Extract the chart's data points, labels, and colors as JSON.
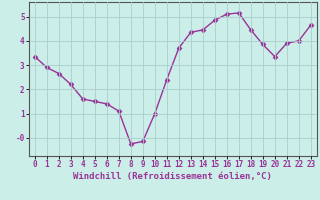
{
  "x": [
    0,
    1,
    2,
    3,
    4,
    5,
    6,
    7,
    8,
    9,
    10,
    11,
    12,
    13,
    14,
    15,
    16,
    17,
    18,
    19,
    20,
    21,
    22,
    23
  ],
  "y": [
    3.35,
    2.9,
    2.65,
    2.2,
    1.6,
    1.5,
    1.4,
    1.1,
    -0.25,
    -0.15,
    1.0,
    2.4,
    3.7,
    4.35,
    4.45,
    4.85,
    5.1,
    5.15,
    4.45,
    3.85,
    3.35,
    3.9,
    4.0,
    4.65
  ],
  "line_color": "#993399",
  "marker": "D",
  "marker_size": 2.5,
  "linewidth": 1.0,
  "xlabel": "Windchill (Refroidissement éolien,°C)",
  "xlabel_fontsize": 6.5,
  "xlim": [
    -0.5,
    23.5
  ],
  "ylim": [
    -0.75,
    5.6
  ],
  "yticks": [
    0,
    1,
    2,
    3,
    4,
    5
  ],
  "ytick_labels": [
    "-0",
    "1",
    "2",
    "3",
    "4",
    "5"
  ],
  "xticks": [
    0,
    1,
    2,
    3,
    4,
    5,
    6,
    7,
    8,
    9,
    10,
    11,
    12,
    13,
    14,
    15,
    16,
    17,
    18,
    19,
    20,
    21,
    22,
    23
  ],
  "background_color": "#cceee8",
  "grid_color": "#aacccc",
  "tick_fontsize": 5.5,
  "xlabel_color": "#993399",
  "spine_color": "#555555"
}
